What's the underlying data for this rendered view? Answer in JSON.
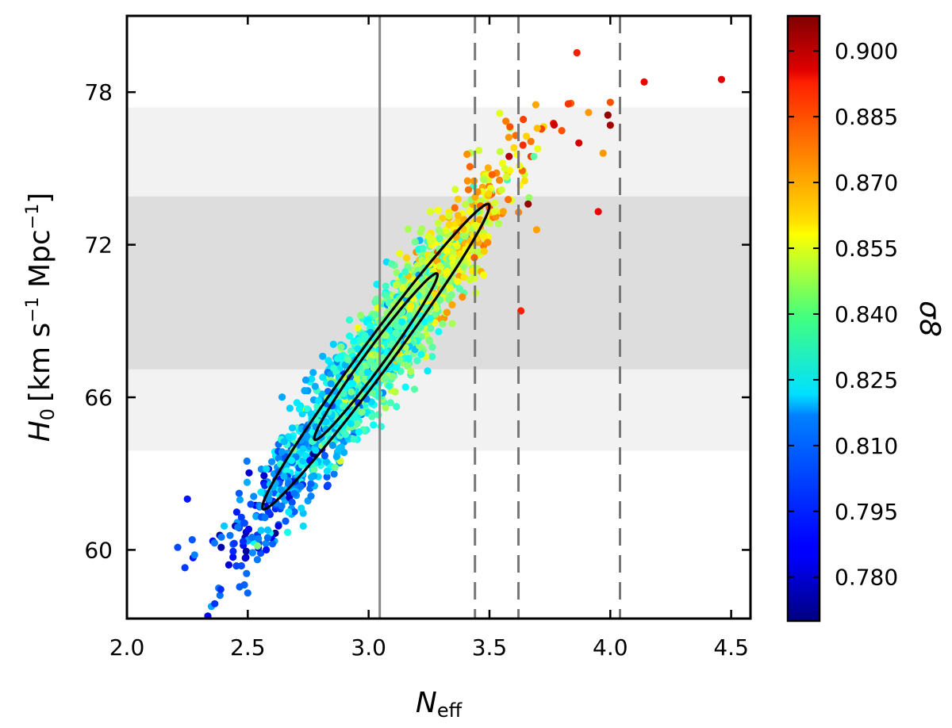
{
  "chart_data": {
    "type": "scatter",
    "xlabel": {
      "main": "N",
      "sub": "eff"
    },
    "ylabel": {
      "main": "H",
      "sub": "0",
      "units": "[km s",
      "sup1": "−1",
      "units2": " Mpc",
      "sup2": "−1",
      "close": "]"
    },
    "xlim": [
      2.0,
      4.58
    ],
    "ylim": [
      57.3,
      81.0
    ],
    "xticks": [
      "2.0",
      "2.5",
      "3.0",
      "3.5",
      "4.0",
      "4.5"
    ],
    "yticks": [
      "60",
      "66",
      "72",
      "78"
    ],
    "colorbar": {
      "label": "σ8",
      "range": [
        0.77,
        0.908
      ],
      "ticks": [
        "0.780",
        "0.795",
        "0.810",
        "0.825",
        "0.840",
        "0.855",
        "0.870",
        "0.885",
        "0.900"
      ]
    },
    "bands": [
      {
        "ymin": 63.9,
        "ymax": 77.4,
        "color": "#f2f2f2"
      },
      {
        "ymin": 67.1,
        "ymax": 73.9,
        "color": "#dddddd"
      }
    ],
    "vlines": [
      {
        "x": 3.046,
        "style": "solid",
        "color": "#888888"
      },
      {
        "x": 3.44,
        "style": "dashed",
        "color": "#777777"
      },
      {
        "x": 3.62,
        "style": "dashed",
        "color": "#777777"
      },
      {
        "x": 4.04,
        "style": "dashed",
        "color": "#777777"
      }
    ],
    "contours": [
      {
        "cx": 3.03,
        "cy": 67.6,
        "halfwidth": 0.255,
        "slope": 12.6,
        "spread": 0.63,
        "level": "inner"
      },
      {
        "cx": 3.03,
        "cy": 67.6,
        "halfwidth": 0.47,
        "slope": 12.6,
        "spread": 0.99,
        "level": "outer"
      }
    ],
    "scatter_model": {
      "n": 1900,
      "x_center": 3.05,
      "x_sd": 0.27,
      "slope": 12.6,
      "y_sd": 1.1,
      "sigma8_center": 0.832,
      "sigma8_per_neff": 0.06
    },
    "points": [
      {
        "x": 4.46,
        "y": 78.5,
        "s8": 0.895
      },
      {
        "x": 4.14,
        "y": 78.4,
        "s8": 0.893
      },
      {
        "x": 4.0,
        "y": 77.6,
        "s8": 0.88
      },
      {
        "x": 3.99,
        "y": 77.1,
        "s8": 0.905
      },
      {
        "x": 4.0,
        "y": 76.7,
        "s8": 0.903
      },
      {
        "x": 3.91,
        "y": 77.2,
        "s8": 0.87
      },
      {
        "x": 3.87,
        "y": 76.0,
        "s8": 0.897
      },
      {
        "x": 3.97,
        "y": 75.6,
        "s8": 0.87
      },
      {
        "x": 3.66,
        "y": 73.6,
        "s8": 0.905
      },
      {
        "x": 3.95,
        "y": 73.3,
        "s8": 0.893
      },
      {
        "x": 3.63,
        "y": 69.4,
        "s8": 0.887
      },
      {
        "x": 2.24,
        "y": 59.3,
        "s8": 0.795
      },
      {
        "x": 2.21,
        "y": 60.1,
        "s8": 0.797
      },
      {
        "x": 2.27,
        "y": 60.4,
        "s8": 0.799
      },
      {
        "x": 2.39,
        "y": 60.1,
        "s8": 0.776
      },
      {
        "x": 2.25,
        "y": 62.0,
        "s8": 0.79
      },
      {
        "x": 2.28,
        "y": 59.8,
        "s8": 0.805
      }
    ]
  }
}
